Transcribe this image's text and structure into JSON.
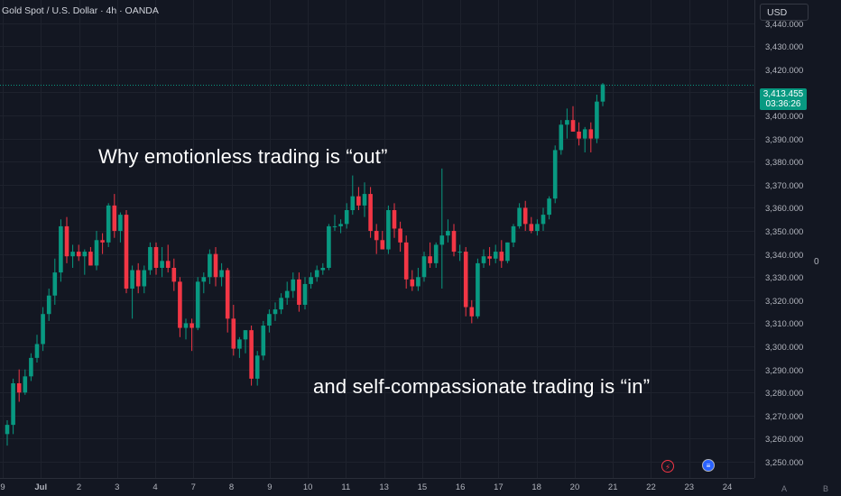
{
  "header": {
    "symbol_label": "Gold Spot / U.S. Dollar · 4h · OANDA",
    "currency_label": "USD"
  },
  "overlay_text": {
    "line1": "Why emotionless trading is “out”",
    "line2": "and self-compassionate trading is “in”"
  },
  "side_label": "0",
  "last_price": {
    "value": "3,413.455",
    "countdown": "03:36:26",
    "color": "#089981"
  },
  "axis_buttons": {
    "auto": "A",
    "log": "B"
  },
  "event_icons": [
    "flash-icon",
    "us-flag-icon"
  ],
  "colors": {
    "up": "#089981",
    "down": "#f23645",
    "background": "#131722",
    "grid": "#1e222d",
    "axis_text": "#b2b5be"
  },
  "chart_data": {
    "type": "candlestick",
    "title": "",
    "ylim": [
      3243,
      3450
    ],
    "y_ticks": [
      3250,
      3260,
      3270,
      3280,
      3290,
      3300,
      3310,
      3320,
      3330,
      3340,
      3350,
      3360,
      3370,
      3380,
      3390,
      3400,
      3410,
      3420,
      3430,
      3440
    ],
    "y_tick_labels": [
      "3,250.000",
      "3,260.000",
      "3,270.000",
      "3,280.000",
      "3,290.000",
      "3,300.000",
      "3,310.000",
      "3,320.000",
      "3,330.000",
      "3,340.000",
      "3,350.000",
      "3,360.000",
      "3,370.000",
      "3,380.000",
      "3,390.000",
      "3,400.000",
      "3,410.000",
      "3,420.000",
      "3,430.000",
      "3,440.000"
    ],
    "x_tick_labels": [
      "9",
      "Jul",
      "2",
      "3",
      "4",
      "7",
      "8",
      "9",
      "10",
      "11",
      "13",
      "15",
      "16",
      "17",
      "18",
      "20",
      "21",
      "22",
      "23",
      "24"
    ],
    "last_price": 3413.455,
    "candles": [
      {
        "o": 3262,
        "h": 3268,
        "l": 3257,
        "c": 3266
      },
      {
        "o": 3266,
        "h": 3286,
        "l": 3262,
        "c": 3284
      },
      {
        "o": 3284,
        "h": 3290,
        "l": 3276,
        "c": 3280
      },
      {
        "o": 3280,
        "h": 3290,
        "l": 3279,
        "c": 3287
      },
      {
        "o": 3287,
        "h": 3297,
        "l": 3285,
        "c": 3295
      },
      {
        "o": 3295,
        "h": 3305,
        "l": 3293,
        "c": 3301
      },
      {
        "o": 3301,
        "h": 3317,
        "l": 3298,
        "c": 3314
      },
      {
        "o": 3314,
        "h": 3325,
        "l": 3311,
        "c": 3322
      },
      {
        "o": 3322,
        "h": 3338,
        "l": 3318,
        "c": 3332
      },
      {
        "o": 3332,
        "h": 3355,
        "l": 3328,
        "c": 3352
      },
      {
        "o": 3352,
        "h": 3356,
        "l": 3336,
        "c": 3339
      },
      {
        "o": 3339,
        "h": 3344,
        "l": 3334,
        "c": 3341
      },
      {
        "o": 3341,
        "h": 3344,
        "l": 3337,
        "c": 3339
      },
      {
        "o": 3339,
        "h": 3342,
        "l": 3331,
        "c": 3341
      },
      {
        "o": 3341,
        "h": 3343,
        "l": 3335,
        "c": 3335
      },
      {
        "o": 3335,
        "h": 3350,
        "l": 3333,
        "c": 3346
      },
      {
        "o": 3346,
        "h": 3349,
        "l": 3340,
        "c": 3345
      },
      {
        "o": 3345,
        "h": 3362,
        "l": 3343,
        "c": 3361
      },
      {
        "o": 3361,
        "h": 3366,
        "l": 3347,
        "c": 3350
      },
      {
        "o": 3350,
        "h": 3358,
        "l": 3345,
        "c": 3357
      },
      {
        "o": 3357,
        "h": 3359,
        "l": 3323,
        "c": 3325
      },
      {
        "o": 3325,
        "h": 3335,
        "l": 3312,
        "c": 3333
      },
      {
        "o": 3333,
        "h": 3336,
        "l": 3323,
        "c": 3326
      },
      {
        "o": 3326,
        "h": 3335,
        "l": 3323,
        "c": 3333
      },
      {
        "o": 3333,
        "h": 3345,
        "l": 3331,
        "c": 3343
      },
      {
        "o": 3343,
        "h": 3345,
        "l": 3331,
        "c": 3334
      },
      {
        "o": 3334,
        "h": 3343,
        "l": 3330,
        "c": 3337
      },
      {
        "o": 3337,
        "h": 3344,
        "l": 3332,
        "c": 3334
      },
      {
        "o": 3334,
        "h": 3338,
        "l": 3324,
        "c": 3328
      },
      {
        "o": 3328,
        "h": 3330,
        "l": 3304,
        "c": 3308
      },
      {
        "o": 3308,
        "h": 3312,
        "l": 3303,
        "c": 3310
      },
      {
        "o": 3310,
        "h": 3312,
        "l": 3298,
        "c": 3308
      },
      {
        "o": 3308,
        "h": 3330,
        "l": 3307,
        "c": 3328
      },
      {
        "o": 3328,
        "h": 3332,
        "l": 3323,
        "c": 3330
      },
      {
        "o": 3330,
        "h": 3342,
        "l": 3327,
        "c": 3340
      },
      {
        "o": 3340,
        "h": 3343,
        "l": 3326,
        "c": 3330
      },
      {
        "o": 3330,
        "h": 3336,
        "l": 3326,
        "c": 3333
      },
      {
        "o": 3333,
        "h": 3334,
        "l": 3306,
        "c": 3312
      },
      {
        "o": 3312,
        "h": 3318,
        "l": 3296,
        "c": 3299
      },
      {
        "o": 3299,
        "h": 3304,
        "l": 3295,
        "c": 3303
      },
      {
        "o": 3303,
        "h": 3307,
        "l": 3297,
        "c": 3307
      },
      {
        "o": 3307,
        "h": 3309,
        "l": 3283,
        "c": 3286
      },
      {
        "o": 3286,
        "h": 3298,
        "l": 3283,
        "c": 3296
      },
      {
        "o": 3296,
        "h": 3311,
        "l": 3294,
        "c": 3309
      },
      {
        "o": 3309,
        "h": 3316,
        "l": 3306,
        "c": 3314
      },
      {
        "o": 3314,
        "h": 3319,
        "l": 3311,
        "c": 3316
      },
      {
        "o": 3316,
        "h": 3323,
        "l": 3314,
        "c": 3321
      },
      {
        "o": 3321,
        "h": 3328,
        "l": 3318,
        "c": 3324
      },
      {
        "o": 3324,
        "h": 3332,
        "l": 3321,
        "c": 3329
      },
      {
        "o": 3329,
        "h": 3332,
        "l": 3315,
        "c": 3318
      },
      {
        "o": 3318,
        "h": 3330,
        "l": 3316,
        "c": 3327
      },
      {
        "o": 3327,
        "h": 3332,
        "l": 3325,
        "c": 3330
      },
      {
        "o": 3330,
        "h": 3335,
        "l": 3328,
        "c": 3333
      },
      {
        "o": 3333,
        "h": 3336,
        "l": 3331,
        "c": 3334
      },
      {
        "o": 3334,
        "h": 3353,
        "l": 3333,
        "c": 3352
      },
      {
        "o": 3352,
        "h": 3357,
        "l": 3350,
        "c": 3352
      },
      {
        "o": 3352,
        "h": 3355,
        "l": 3349,
        "c": 3353
      },
      {
        "o": 3353,
        "h": 3362,
        "l": 3351,
        "c": 3359
      },
      {
        "o": 3359,
        "h": 3374,
        "l": 3357,
        "c": 3365
      },
      {
        "o": 3365,
        "h": 3369,
        "l": 3359,
        "c": 3361
      },
      {
        "o": 3361,
        "h": 3371,
        "l": 3356,
        "c": 3366
      },
      {
        "o": 3366,
        "h": 3369,
        "l": 3347,
        "c": 3350
      },
      {
        "o": 3350,
        "h": 3353,
        "l": 3340,
        "c": 3346
      },
      {
        "o": 3346,
        "h": 3350,
        "l": 3342,
        "c": 3342
      },
      {
        "o": 3342,
        "h": 3361,
        "l": 3340,
        "c": 3359
      },
      {
        "o": 3359,
        "h": 3362,
        "l": 3347,
        "c": 3351
      },
      {
        "o": 3351,
        "h": 3354,
        "l": 3341,
        "c": 3345
      },
      {
        "o": 3345,
        "h": 3348,
        "l": 3325,
        "c": 3329
      },
      {
        "o": 3329,
        "h": 3333,
        "l": 3324,
        "c": 3326
      },
      {
        "o": 3326,
        "h": 3334,
        "l": 3324,
        "c": 3330
      },
      {
        "o": 3330,
        "h": 3341,
        "l": 3328,
        "c": 3339
      },
      {
        "o": 3339,
        "h": 3345,
        "l": 3334,
        "c": 3336
      },
      {
        "o": 3336,
        "h": 3345,
        "l": 3334,
        "c": 3344
      },
      {
        "o": 3344,
        "h": 3377,
        "l": 3325,
        "c": 3348
      },
      {
        "o": 3348,
        "h": 3355,
        "l": 3345,
        "c": 3350
      },
      {
        "o": 3350,
        "h": 3353,
        "l": 3339,
        "c": 3341
      },
      {
        "o": 3341,
        "h": 3344,
        "l": 3337,
        "c": 3341
      },
      {
        "o": 3341,
        "h": 3343,
        "l": 3313,
        "c": 3317
      },
      {
        "o": 3317,
        "h": 3320,
        "l": 3310,
        "c": 3313
      },
      {
        "o": 3313,
        "h": 3338,
        "l": 3312,
        "c": 3336
      },
      {
        "o": 3336,
        "h": 3342,
        "l": 3334,
        "c": 3339
      },
      {
        "o": 3339,
        "h": 3343,
        "l": 3335,
        "c": 3338
      },
      {
        "o": 3338,
        "h": 3344,
        "l": 3336,
        "c": 3341
      },
      {
        "o": 3341,
        "h": 3346,
        "l": 3334,
        "c": 3337
      },
      {
        "o": 3337,
        "h": 3345,
        "l": 3336,
        "c": 3345
      },
      {
        "o": 3345,
        "h": 3353,
        "l": 3343,
        "c": 3352
      },
      {
        "o": 3352,
        "h": 3362,
        "l": 3351,
        "c": 3360
      },
      {
        "o": 3360,
        "h": 3363,
        "l": 3350,
        "c": 3353
      },
      {
        "o": 3353,
        "h": 3356,
        "l": 3349,
        "c": 3350
      },
      {
        "o": 3350,
        "h": 3355,
        "l": 3348,
        "c": 3353
      },
      {
        "o": 3353,
        "h": 3360,
        "l": 3350,
        "c": 3357
      },
      {
        "o": 3357,
        "h": 3365,
        "l": 3355,
        "c": 3364
      },
      {
        "o": 3364,
        "h": 3387,
        "l": 3362,
        "c": 3385
      },
      {
        "o": 3385,
        "h": 3398,
        "l": 3383,
        "c": 3396
      },
      {
        "o": 3396,
        "h": 3403,
        "l": 3390,
        "c": 3398
      },
      {
        "o": 3398,
        "h": 3404,
        "l": 3393,
        "c": 3393
      },
      {
        "o": 3393,
        "h": 3397,
        "l": 3387,
        "c": 3390
      },
      {
        "o": 3390,
        "h": 3395,
        "l": 3384,
        "c": 3394
      },
      {
        "o": 3394,
        "h": 3397,
        "l": 3384,
        "c": 3390
      },
      {
        "o": 3390,
        "h": 3409,
        "l": 3388,
        "c": 3406
      },
      {
        "o": 3406,
        "h": 3414,
        "l": 3404,
        "c": 3413.455
      }
    ]
  }
}
